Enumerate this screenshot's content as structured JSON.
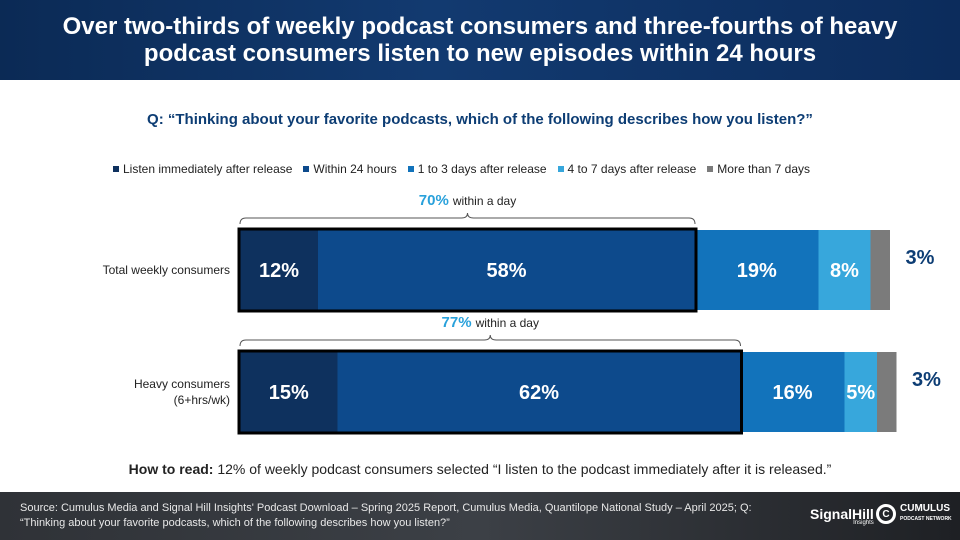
{
  "header": {
    "title": "Over two-thirds of weekly podcast consumers and three-fourths of heavy podcast consumers listen to new episodes within 24 hours"
  },
  "question": "Q: “Thinking about your favorite podcasts, which of the following describes how you listen?”",
  "how_to_read": {
    "label": "How to read:",
    "text": "12% of weekly podcast consumers selected “I listen to the podcast immediately after it is released.”"
  },
  "footer": {
    "source": "Source: Cumulus Media and Signal Hill Insights' Podcast Download – Spring 2025 Report, Cumulus Media, Quantilope National Study – April 2025; Q: “Thinking about your favorite podcasts, which of the following describes how you listen?”",
    "logo_signalhill": "SignalHill",
    "logo_signalhill_sub": "Insights",
    "logo_cumulus": "CUMULUS",
    "logo_cumulus_sub": "PODCAST NETWORK",
    "logo_cumulus_mark": "C"
  },
  "colors": {
    "immediately": "#0e315e",
    "within_24": "#0d4a8c",
    "one_to_three": "#1273bb",
    "four_to_seven": "#37a7dc",
    "more_than_7": "#7b7b7b",
    "accent": "#29a1db"
  },
  "chart_data": {
    "type": "bar",
    "orientation": "horizontal",
    "stacked": true,
    "categories": [
      "Total weekly consumers",
      "Heavy consumers (6+hrs/wk)"
    ],
    "category_lines": [
      [
        "Total weekly consumers"
      ],
      [
        "Heavy consumers",
        "(6+hrs/wk)"
      ]
    ],
    "series": [
      {
        "name": "Listen immediately after release",
        "values": [
          12,
          15
        ],
        "color": "#0e315e"
      },
      {
        "name": "Within 24 hours",
        "values": [
          58,
          62
        ],
        "color": "#0d4a8c"
      },
      {
        "name": "1 to 3 days after release",
        "values": [
          19,
          16
        ],
        "color": "#1273bb"
      },
      {
        "name": "4 to 7 days after release",
        "values": [
          8,
          5
        ],
        "color": "#37a7dc"
      },
      {
        "name": "More than 7 days",
        "values": [
          3,
          3
        ],
        "color": "#7b7b7b"
      }
    ],
    "bracket_values": [
      "70%",
      "77%"
    ],
    "bracket_text": "within a day",
    "value_suffix": "%",
    "legend_position": "top",
    "grid": false
  }
}
